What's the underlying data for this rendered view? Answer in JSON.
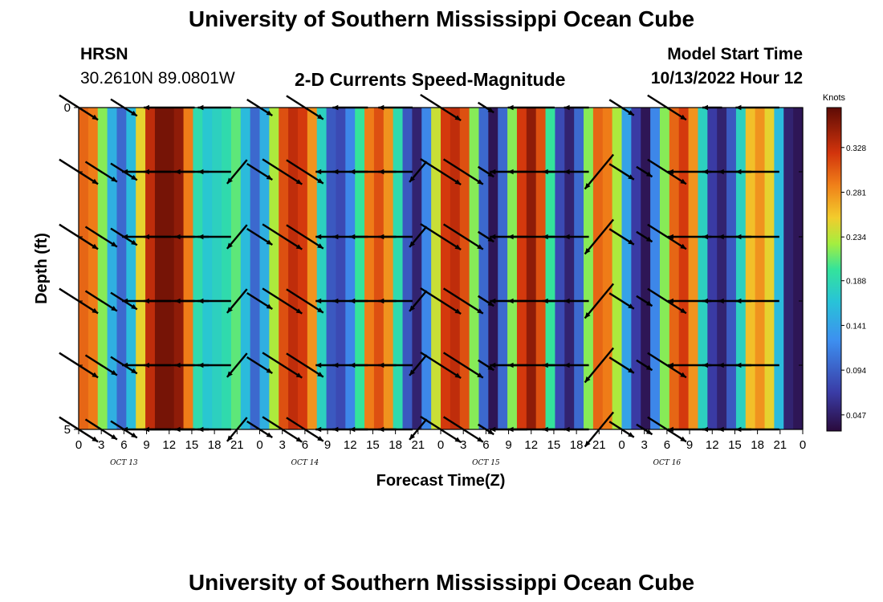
{
  "title": "University of Southern Mississippi Ocean Cube",
  "footer_title": "University of Southern Mississippi Ocean Cube",
  "station": {
    "name": "HRSN",
    "coords": "30.2610N  89.0801W"
  },
  "model": {
    "label": "Model Start Time",
    "value": "10/13/2022 Hour 12"
  },
  "chart_data": {
    "type": "heatmap",
    "title": "2-D Currents Speed-Magnitude",
    "xlabel": "Forecast Time(Z)",
    "ylabel": "Depth (ft)",
    "ylim": [
      0,
      5
    ],
    "y_tick_labels": [
      "0",
      "5"
    ],
    "x_tick_labels": [
      "0",
      "3",
      "6",
      "9",
      "12",
      "15",
      "18",
      "21",
      "0",
      "3",
      "6",
      "9",
      "12",
      "15",
      "18",
      "21",
      "0",
      "3",
      "6",
      "9",
      "12",
      "15",
      "18",
      "21",
      "0",
      "3",
      "6",
      "9",
      "12",
      "15",
      "18",
      "21",
      "0"
    ],
    "day_labels": [
      "OCT 13",
      "OCT 14",
      "OCT 15",
      "OCT 16"
    ],
    "colorbar": {
      "unit": "Knots",
      "ticks": [
        "0.328",
        "0.281",
        "0.234",
        "0.188",
        "0.141",
        "0.094",
        "0.047"
      ],
      "range": [
        0.03,
        0.37
      ]
    },
    "speed_by_hour_knots": [
      0.3,
      0.29,
      0.22,
      0.15,
      0.1,
      0.16,
      0.25,
      0.33,
      0.36,
      0.36,
      0.35,
      0.29,
      0.19,
      0.17,
      0.18,
      0.19,
      0.21,
      0.16,
      0.1,
      0.15,
      0.23,
      0.31,
      0.33,
      0.32,
      0.28,
      0.18,
      0.09,
      0.08,
      0.12,
      0.2,
      0.29,
      0.31,
      0.28,
      0.19,
      0.09,
      0.05,
      0.12,
      0.24,
      0.32,
      0.33,
      0.31,
      0.22,
      0.1,
      0.04,
      0.1,
      0.22,
      0.32,
      0.35,
      0.31,
      0.2,
      0.08,
      0.05,
      0.1,
      0.22,
      0.3,
      0.29,
      0.23,
      0.14,
      0.07,
      0.04,
      0.12,
      0.22,
      0.3,
      0.32,
      0.28,
      0.18,
      0.07,
      0.05,
      0.09,
      0.18,
      0.26,
      0.28,
      0.25,
      0.16,
      0.05,
      0.04
    ]
  }
}
